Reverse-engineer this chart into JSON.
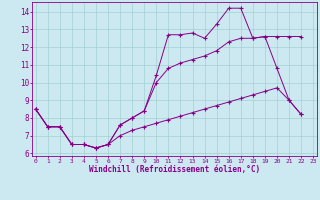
{
  "xlabel": "Windchill (Refroidissement éolien,°C)",
  "background_color": "#cce8f0",
  "line_color": "#880088",
  "grid_color": "#99cccc",
  "xlim_min": -0.3,
  "xlim_max": 23.3,
  "ylim_min": 5.85,
  "ylim_max": 14.55,
  "yticks": [
    6,
    7,
    8,
    9,
    10,
    11,
    12,
    13,
    14
  ],
  "xticks": [
    0,
    1,
    2,
    3,
    4,
    5,
    6,
    7,
    8,
    9,
    10,
    11,
    12,
    13,
    14,
    15,
    16,
    17,
    18,
    19,
    20,
    21,
    22,
    23
  ],
  "line1_x": [
    0,
    1,
    2,
    3,
    4,
    5,
    6,
    7,
    8,
    9,
    10,
    11,
    12,
    13,
    14,
    15,
    16,
    17,
    18,
    19,
    20,
    21,
    22
  ],
  "line1_y": [
    8.5,
    7.5,
    7.5,
    6.5,
    6.5,
    6.3,
    6.5,
    7.6,
    8.0,
    8.4,
    10.4,
    12.7,
    12.7,
    12.8,
    12.5,
    13.3,
    14.2,
    14.2,
    12.5,
    12.6,
    10.8,
    9.0,
    8.2
  ],
  "line2_x": [
    0,
    1,
    2,
    3,
    4,
    5,
    6,
    7,
    8,
    9,
    10,
    11,
    12,
    13,
    14,
    15,
    16,
    17,
    18,
    19,
    20,
    21,
    22
  ],
  "line2_y": [
    8.5,
    7.5,
    7.5,
    6.5,
    6.5,
    6.3,
    6.5,
    7.6,
    8.0,
    8.4,
    10.0,
    10.8,
    11.1,
    11.3,
    11.5,
    11.8,
    12.3,
    12.5,
    12.5,
    12.6,
    12.6,
    12.6,
    12.6
  ],
  "line3_x": [
    0,
    1,
    2,
    3,
    4,
    5,
    6,
    7,
    8,
    9,
    10,
    11,
    12,
    13,
    14,
    15,
    16,
    17,
    18,
    19,
    20,
    21,
    22
  ],
  "line3_y": [
    8.5,
    7.5,
    7.5,
    6.5,
    6.5,
    6.3,
    6.5,
    7.0,
    7.3,
    7.5,
    7.7,
    7.9,
    8.1,
    8.3,
    8.5,
    8.7,
    8.9,
    9.1,
    9.3,
    9.5,
    9.7,
    9.0,
    8.2
  ]
}
